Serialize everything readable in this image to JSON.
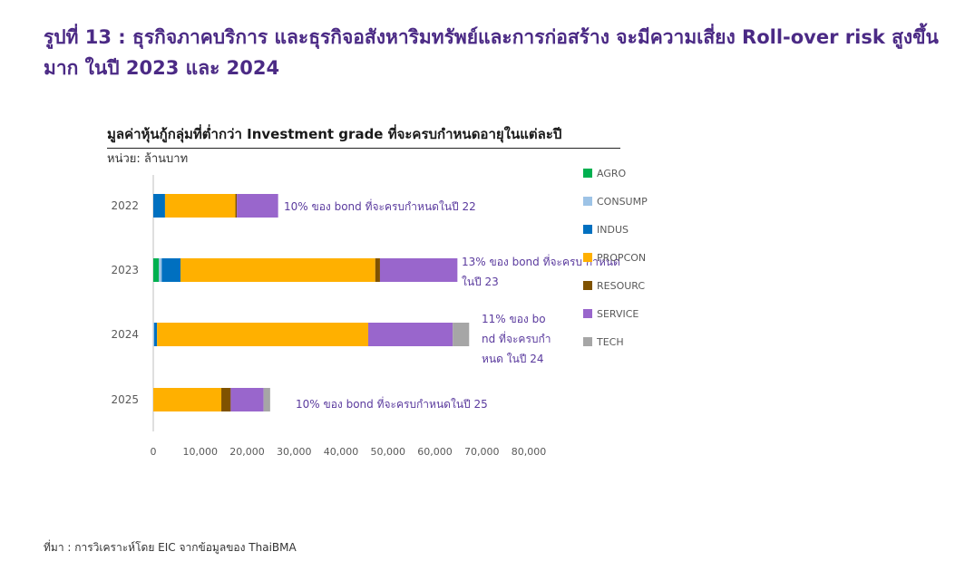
{
  "figure_title": "รูปที่ 13 : ธุรกิจภาคบริการ และธุรกิจอสังหาริมทรัพย์และการก่อสร้าง จะมีความเสี่ยง Roll-over risk สูงขึ้นมาก ในปี 2023 และ 2024",
  "source": "ที่มา : การวิเคราะห์โดย EIC จากข้อมูลของ ThaiBMA",
  "chart_data": {
    "type": "bar",
    "orientation": "horizontal",
    "stacked": true,
    "title": "มูลค่าหุ้นกู้กลุ่มที่ต่ำกว่า Investment grade ที่จะครบกำหนดอายุในแต่ละปี",
    "unit": "หน่วย: ล้านบาท",
    "categories": [
      "2022",
      "2023",
      "2024",
      "2025"
    ],
    "series": [
      {
        "name": "AGRO",
        "color": "#00b050",
        "values": [
          0,
          1200,
          0,
          0
        ]
      },
      {
        "name": "CONSUMP",
        "color": "#9dc3e6",
        "values": [
          0,
          600,
          200,
          0
        ]
      },
      {
        "name": "INDUS",
        "color": "#0070c0",
        "values": [
          2500,
          4000,
          600,
          0
        ]
      },
      {
        "name": "PROPCON",
        "color": "#ffb000",
        "values": [
          15000,
          41500,
          45000,
          14500
        ]
      },
      {
        "name": "RESOURC",
        "color": "#7f5200",
        "values": [
          300,
          1000,
          0,
          2000
        ]
      },
      {
        "name": "SERVICE",
        "color": "#9966cc",
        "values": [
          8800,
          16500,
          18000,
          7000
        ]
      },
      {
        "name": "TECH",
        "color": "#a6a6a6",
        "values": [
          0,
          0,
          3500,
          1400
        ]
      }
    ],
    "annotations": [
      "10% ของ bond ที่จะครบกำหนดในปี 22",
      "13% ของ bond ที่จะครบ กำหนดในปี 23",
      "11% ของ bond ที่จะครบกำหนด ในปี 24",
      "10% ของ bond ที่จะครบกำหนดในปี 25"
    ],
    "xlim": [
      0,
      80000
    ],
    "x_ticks": [
      "0",
      "10,000",
      "20,000",
      "30,000",
      "40,000",
      "50,000",
      "60,000",
      "70,000",
      "80,000"
    ],
    "legend_position": "right",
    "grid": false
  }
}
